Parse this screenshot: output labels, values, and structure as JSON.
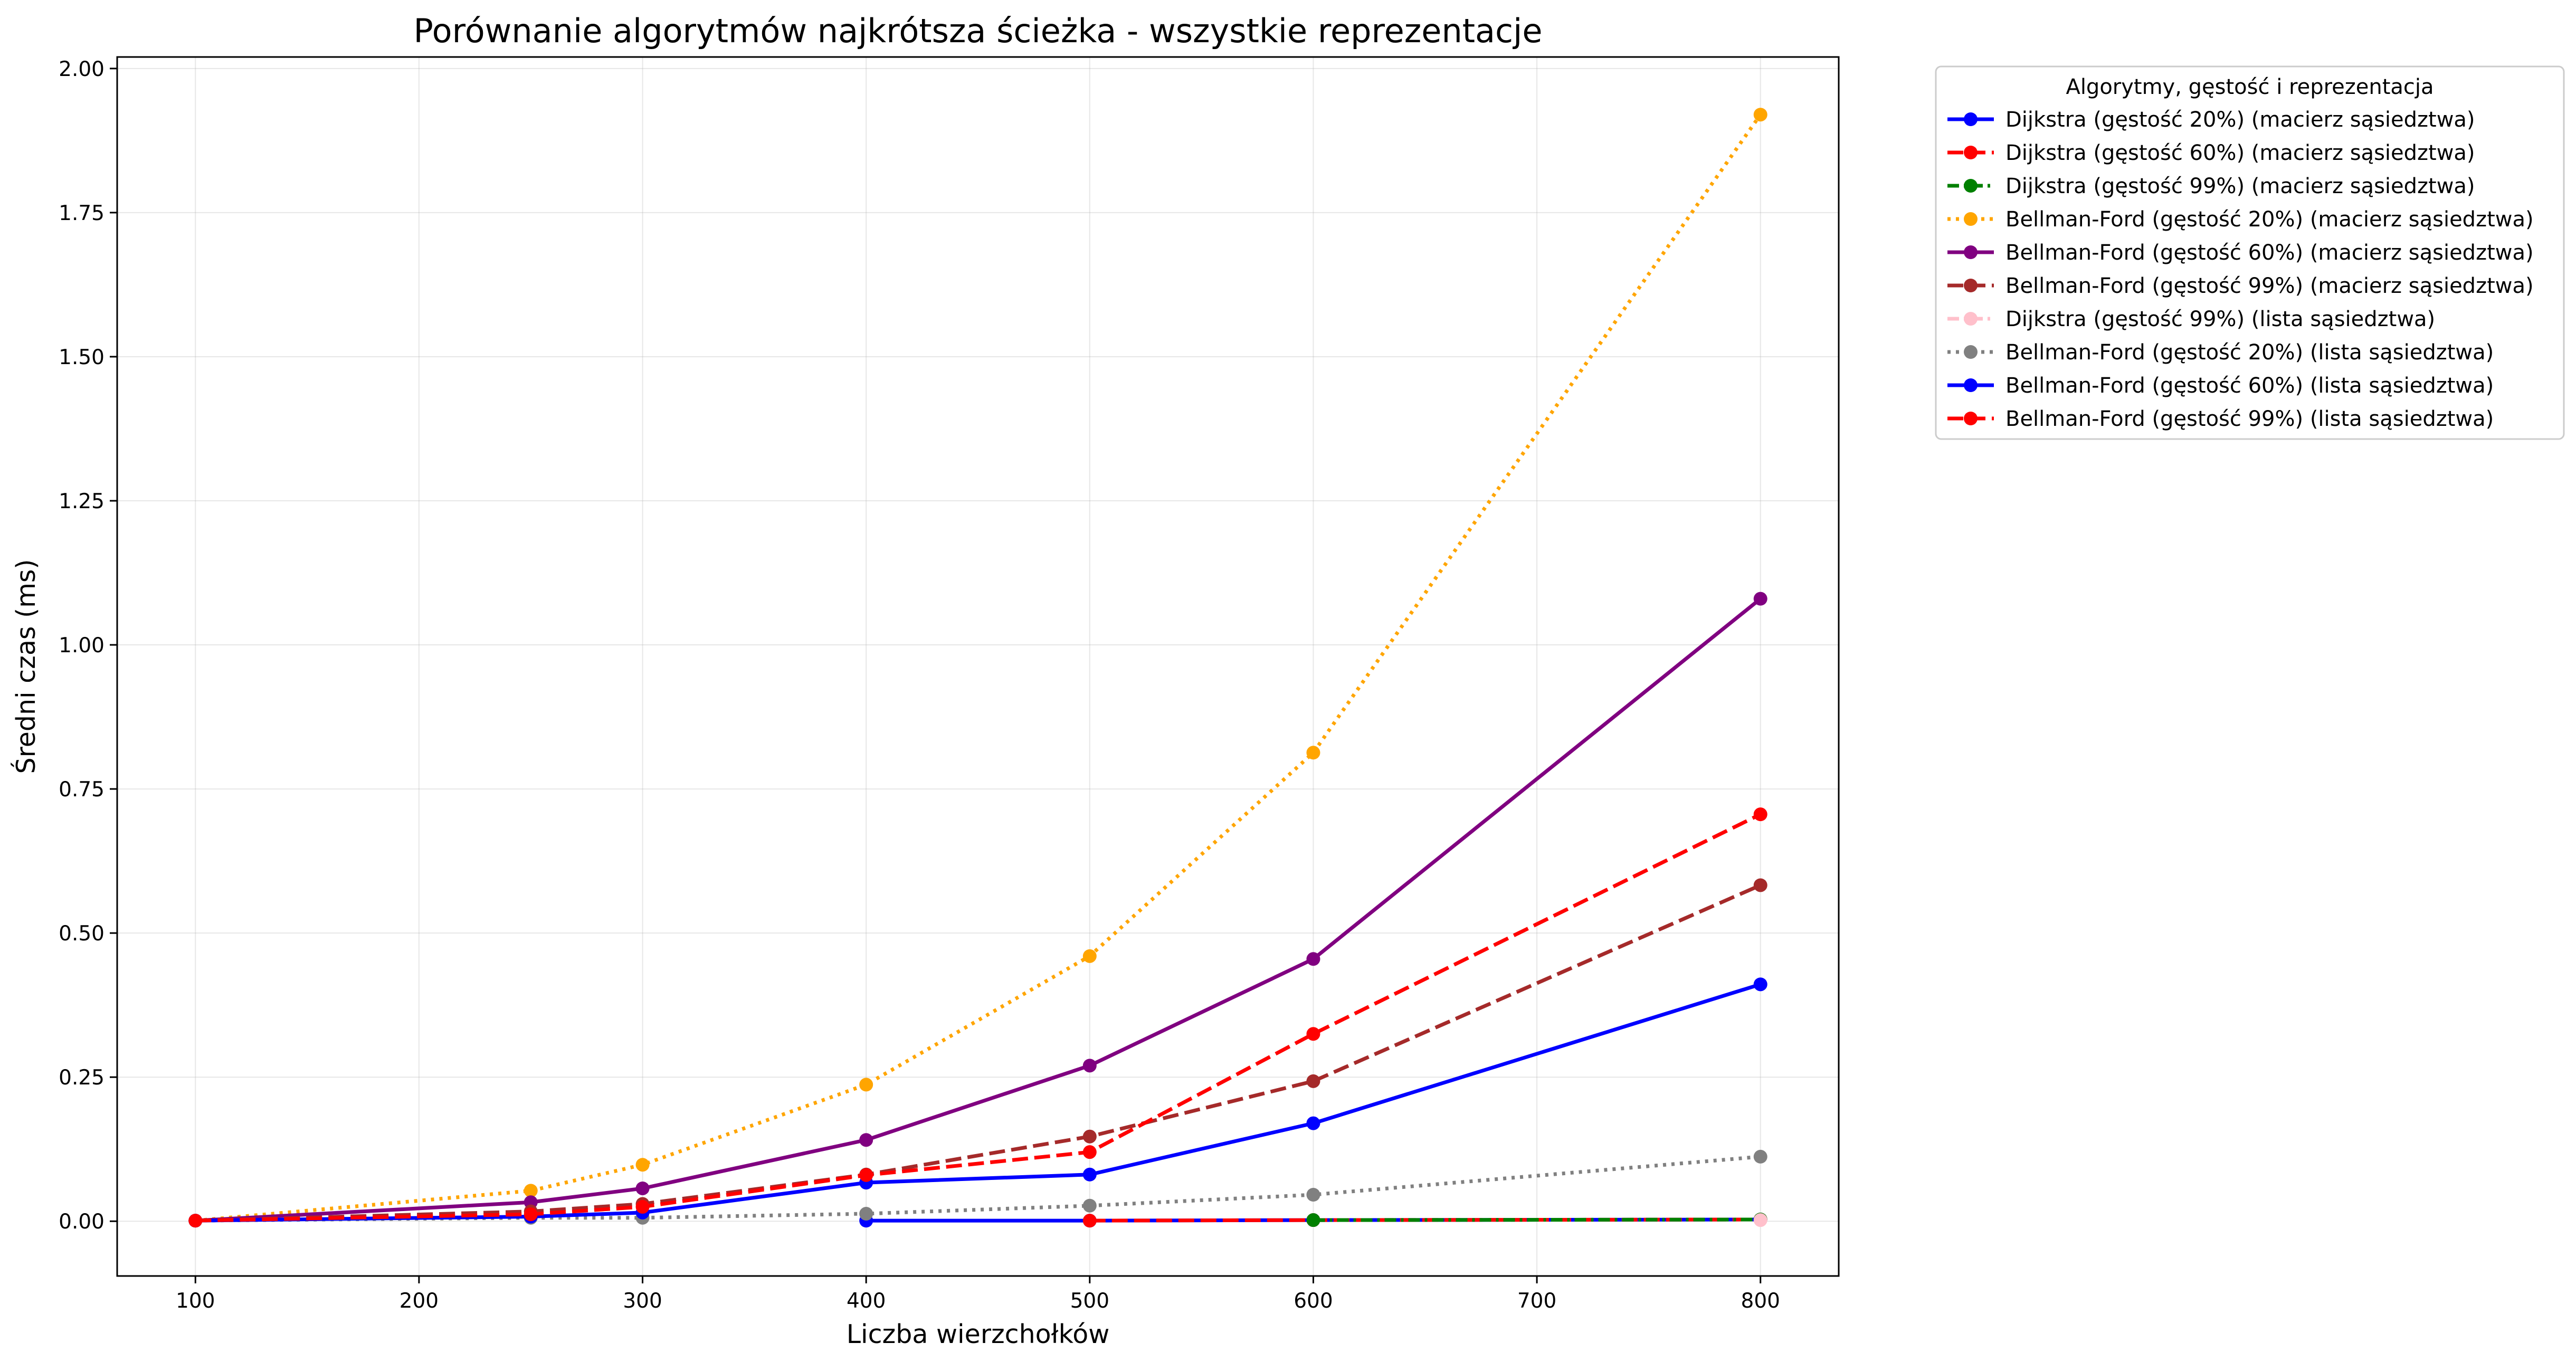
{
  "chart_data": {
    "type": "line",
    "title": "Porównanie algorytmów najkrótsza ścieżka - wszystkie reprezentacje",
    "xlabel": "Liczba wierzchołków",
    "ylabel": "Średni czas (ms)",
    "xlim": [
      65,
      835
    ],
    "ylim": [
      -0.095,
      2.02
    ],
    "xticks": [
      100,
      200,
      300,
      400,
      500,
      600,
      700,
      800
    ],
    "xtick_labels": [
      "100",
      "200",
      "300",
      "400",
      "500",
      "600",
      "700",
      "800"
    ],
    "yticks": [
      0,
      0.25,
      0.5,
      0.75,
      1.0,
      1.25,
      1.5,
      1.75,
      2.0
    ],
    "ytick_labels": [
      "0.00",
      "0.25",
      "0.50",
      "0.75",
      "1.00",
      "1.25",
      "1.50",
      "1.75",
      "2.00"
    ],
    "grid": true,
    "legend_title": "Algorytmy, gęstość i reprezentacja",
    "legend_position": "outside right, top",
    "series": [
      {
        "name": "Dijkstra (gęstość 20%) (macierz sąsiedztwa)",
        "color": "#0000ff",
        "linestyle": "solid",
        "x": [
          400,
          500,
          600,
          800
        ],
        "y": [
          0.001,
          0.001,
          0.002,
          0.003
        ]
      },
      {
        "name": "Dijkstra (gęstość 60%) (macierz sąsiedztwa)",
        "color": "#ff0000",
        "linestyle": "dashed",
        "x": [
          500,
          600,
          800
        ],
        "y": [
          0.001,
          0.002,
          0.003
        ]
      },
      {
        "name": "Dijkstra (gęstość 99%) (macierz sąsiedztwa)",
        "color": "#008000",
        "linestyle": "dashdot",
        "x": [
          600,
          800
        ],
        "y": [
          0.002,
          0.003
        ]
      },
      {
        "name": "Bellman-Ford (gęstość 20%) (macierz sąsiedztwa)",
        "color": "#ffa500",
        "linestyle": "dotted",
        "x": [
          100,
          250,
          300,
          400,
          500,
          600,
          800
        ],
        "y": [
          0.001,
          0.053,
          0.098,
          0.237,
          0.46,
          0.813,
          1.92
        ]
      },
      {
        "name": "Bellman-Ford (gęstość 60%) (macierz sąsiedztwa)",
        "color": "#800080",
        "linestyle": "solid",
        "x": [
          100,
          250,
          300,
          400,
          500,
          600,
          800
        ],
        "y": [
          0.001,
          0.033,
          0.057,
          0.141,
          0.27,
          0.455,
          1.08
        ]
      },
      {
        "name": "Bellman-Ford (gęstość 99%) (macierz sąsiedztwa)",
        "color": "#a52a2a",
        "linestyle": "dashed",
        "x": [
          100,
          250,
          300,
          400,
          500,
          600,
          800
        ],
        "y": [
          0.001,
          0.017,
          0.03,
          0.081,
          0.147,
          0.243,
          0.583
        ]
      },
      {
        "name": "Dijkstra (gęstość 99%) (lista sąsiedztwa)",
        "color": "#ffc0cb",
        "linestyle": "dashdot",
        "x": [
          800
        ],
        "y": [
          0.002
        ]
      },
      {
        "name": "Bellman-Ford (gęstość 20%) (lista sąsiedztwa)",
        "color": "#808080",
        "linestyle": "dotted",
        "x": [
          100,
          250,
          300,
          400,
          500,
          600,
          800
        ],
        "y": [
          0.001,
          0.006,
          0.006,
          0.013,
          0.027,
          0.046,
          0.112
        ]
      },
      {
        "name": "Bellman-Ford (gęstość 60%) (lista sąsiedztwa)",
        "color": "#0000ff",
        "linestyle": "solid",
        "x": [
          100,
          250,
          300,
          400,
          500,
          600,
          800
        ],
        "y": [
          0.001,
          0.008,
          0.015,
          0.067,
          0.081,
          0.17,
          0.411
        ]
      },
      {
        "name": "Bellman-Ford (gęstość 99%) (lista sąsiedztwa)",
        "color": "#ff0000",
        "linestyle": "dashed",
        "x": [
          100,
          250,
          300,
          400,
          500,
          600,
          800
        ],
        "y": [
          0.001,
          0.012,
          0.025,
          0.08,
          0.12,
          0.325,
          0.706
        ]
      }
    ]
  }
}
